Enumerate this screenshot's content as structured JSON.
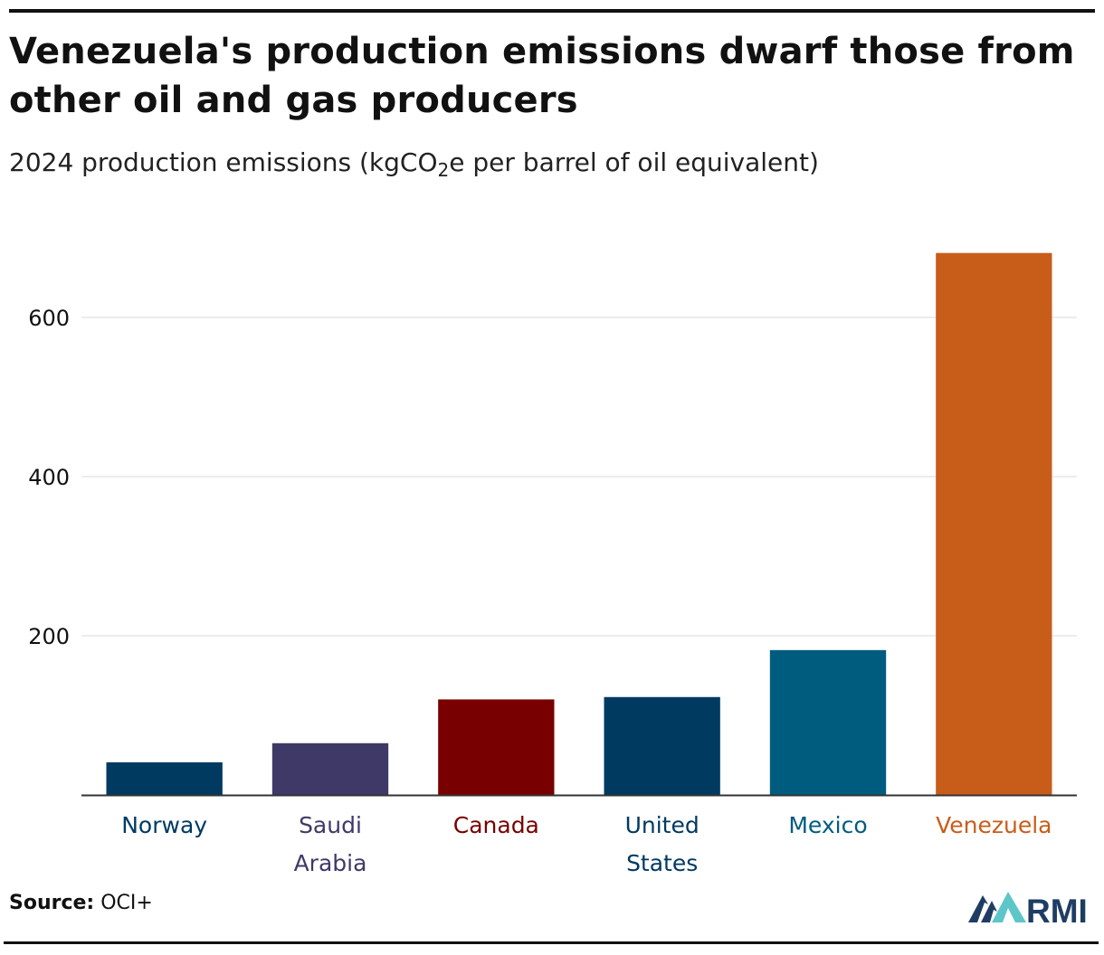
{
  "header": {
    "title": "Venezuela's production emissions dwarf those from other oil and gas producers",
    "subtitle_pre": "2024 production emissions (kgCO",
    "subtitle_sub": "2",
    "subtitle_post": "e per barrel of oil equivalent)"
  },
  "footer": {
    "source_label": "Source:",
    "source_value": "OCI+",
    "logo_text": "RMI"
  },
  "colors": {
    "norway": "#003A61",
    "saudi_arabia": "#3E3967",
    "canada": "#780000",
    "united_states": "#003A61",
    "mexico": "#005C7F",
    "venezuela": "#C85D19",
    "grid": "#e6e6e6",
    "axis": "#333333"
  },
  "chart_data": {
    "type": "bar",
    "title": "Venezuela's production emissions dwarf those from other oil and gas producers",
    "subtitle": "2024 production emissions (kgCO2e per barrel of oil equivalent)",
    "xlabel": "",
    "ylabel": "",
    "categories": [
      "Norway",
      "Saudi Arabia",
      "Canada",
      "United States",
      "Mexico",
      "Venezuela"
    ],
    "category_lines": [
      [
        "Norway"
      ],
      [
        "Saudi",
        "Arabia"
      ],
      [
        "Canada"
      ],
      [
        "United",
        "States"
      ],
      [
        "Mexico"
      ],
      [
        "Venezuela"
      ]
    ],
    "values": [
      41,
      65,
      120,
      123,
      182,
      681
    ],
    "bar_colors": [
      "#003A61",
      "#3E3967",
      "#780000",
      "#003A61",
      "#005C7F",
      "#C85D19"
    ],
    "yticks": [
      200,
      400,
      600
    ],
    "ytick_labels": [
      "200",
      "400",
      "600"
    ],
    "ylim": [
      0,
      700
    ],
    "grid": true,
    "legend": "none"
  }
}
